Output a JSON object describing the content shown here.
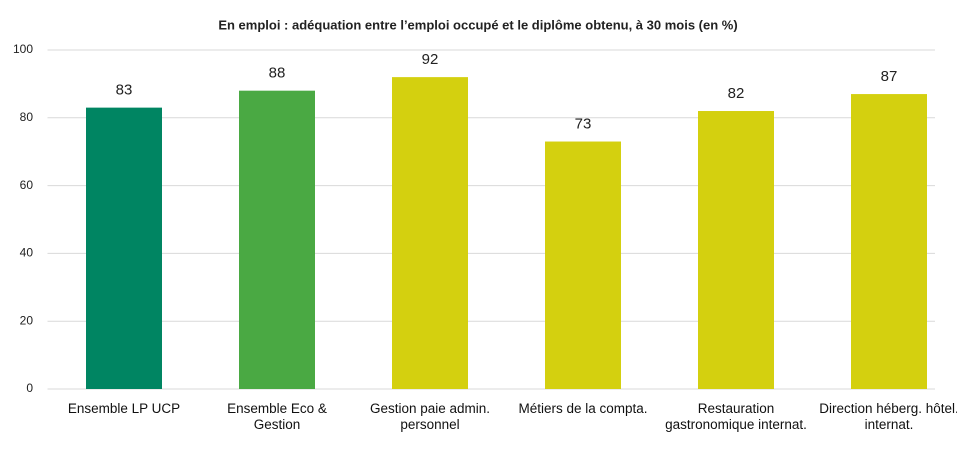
{
  "chart_data": {
    "type": "bar",
    "title": "En emploi : adéquation entre l’emploi occupé et le diplôme obtenu, à 30 mois (en %)",
    "categories": [
      "Ensemble LP UCP",
      "Ensemble Eco & Gestion",
      "Gestion paie admin. personnel",
      "Métiers de la compta.",
      "Restauration gastronomique internat.",
      "Direction héberg. hôtel. internat."
    ],
    "values": [
      83,
      88,
      92,
      73,
      82,
      87
    ],
    "colors": [
      "#008562",
      "#4aa943",
      "#d4d00f",
      "#d4d00f",
      "#d4d00f",
      "#d4d00f"
    ],
    "ylim": [
      0,
      100
    ],
    "yticks": [
      0,
      20,
      40,
      60,
      80,
      100
    ],
    "grid": true
  }
}
